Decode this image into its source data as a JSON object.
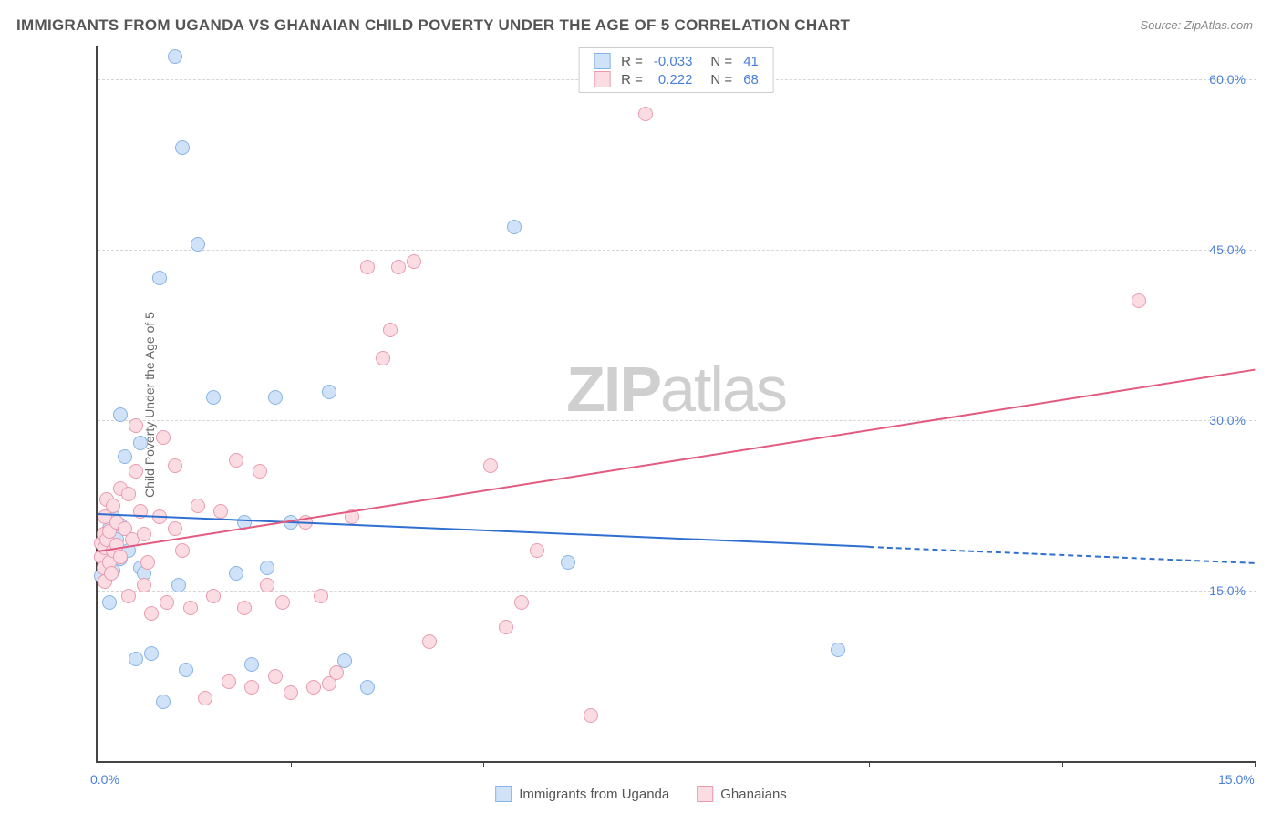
{
  "title": "IMMIGRANTS FROM UGANDA VS GHANAIAN CHILD POVERTY UNDER THE AGE OF 5 CORRELATION CHART",
  "source": "Source: ZipAtlas.com",
  "ylabel": "Child Poverty Under the Age of 5",
  "watermark_a": "ZIP",
  "watermark_b": "atlas",
  "chart": {
    "type": "scatter",
    "xlim": [
      0,
      15
    ],
    "ylim": [
      0,
      63
    ],
    "xticks": [
      0.0,
      15.0
    ],
    "xtick_labels": [
      "0.0%",
      "15.0%"
    ],
    "xtick_marks": [
      0,
      2.5,
      5.0,
      7.5,
      10.0,
      12.5,
      15.0
    ],
    "yticks": [
      15.0,
      30.0,
      45.0,
      60.0
    ],
    "ytick_labels": [
      "15.0%",
      "30.0%",
      "45.0%",
      "60.0%"
    ],
    "grid_color": "#d5d5d5",
    "axis_color": "#444444",
    "background_color": "#ffffff",
    "point_radius": 8,
    "title_color": "#555555",
    "title_fontsize": 17,
    "label_color": "#666666",
    "label_fontsize": 14,
    "tick_color": "#4a7fd8",
    "tick_fontsize": 14
  },
  "series": [
    {
      "name": "Immigrants from Uganda",
      "fill": "#cfe2f7",
      "stroke": "#89b4e6",
      "line_color": "#2f6fd0",
      "R_label": "R =",
      "R": "-0.033",
      "N_label": "N =",
      "N": "41",
      "trend": {
        "x1": 0,
        "y1": 21.8,
        "x2": 15,
        "y2": 17.5,
        "solid_until_x": 10.0
      },
      "points": [
        [
          0.05,
          16.3
        ],
        [
          0.1,
          17.5
        ],
        [
          0.1,
          18.2
        ],
        [
          0.1,
          19.0
        ],
        [
          0.1,
          19.8
        ],
        [
          0.15,
          14.0
        ],
        [
          0.15,
          20.5
        ],
        [
          0.2,
          16.8
        ],
        [
          0.2,
          21.5
        ],
        [
          0.25,
          18.0
        ],
        [
          0.25,
          19.5
        ],
        [
          0.3,
          17.8
        ],
        [
          0.3,
          20.8
        ],
        [
          0.3,
          30.5
        ],
        [
          0.35,
          26.8
        ],
        [
          0.4,
          18.5
        ],
        [
          0.5,
          9.0
        ],
        [
          0.55,
          17.0
        ],
        [
          0.55,
          28.0
        ],
        [
          0.6,
          16.5
        ],
        [
          0.7,
          9.5
        ],
        [
          0.8,
          42.5
        ],
        [
          0.85,
          5.2
        ],
        [
          1.0,
          62.0
        ],
        [
          1.05,
          15.5
        ],
        [
          1.1,
          54.0
        ],
        [
          1.15,
          8.0
        ],
        [
          1.3,
          45.5
        ],
        [
          1.5,
          32.0
        ],
        [
          1.8,
          16.5
        ],
        [
          1.9,
          21.0
        ],
        [
          2.0,
          8.5
        ],
        [
          2.2,
          17.0
        ],
        [
          2.3,
          32.0
        ],
        [
          2.5,
          21.0
        ],
        [
          3.0,
          32.5
        ],
        [
          3.2,
          8.8
        ],
        [
          3.5,
          6.5
        ],
        [
          5.4,
          47.0
        ],
        [
          6.1,
          17.5
        ],
        [
          9.6,
          9.8
        ]
      ]
    },
    {
      "name": "Ghanaians",
      "fill": "#fbdce3",
      "stroke": "#e99bb0",
      "line_color": "#e25a7e",
      "R_label": "R =",
      "R": "0.222",
      "N_label": "N =",
      "N": "68",
      "trend": {
        "x1": 0,
        "y1": 18.5,
        "x2": 15,
        "y2": 34.5,
        "solid_until_x": 15.0
      },
      "points": [
        [
          0.05,
          18.0
        ],
        [
          0.05,
          19.2
        ],
        [
          0.08,
          17.0
        ],
        [
          0.08,
          20.0
        ],
        [
          0.1,
          15.8
        ],
        [
          0.1,
          18.8
        ],
        [
          0.1,
          21.5
        ],
        [
          0.12,
          19.5
        ],
        [
          0.12,
          23.0
        ],
        [
          0.15,
          17.5
        ],
        [
          0.15,
          20.2
        ],
        [
          0.18,
          16.5
        ],
        [
          0.2,
          18.5
        ],
        [
          0.2,
          22.5
        ],
        [
          0.25,
          19.0
        ],
        [
          0.25,
          21.0
        ],
        [
          0.3,
          18.0
        ],
        [
          0.3,
          24.0
        ],
        [
          0.35,
          20.5
        ],
        [
          0.4,
          14.5
        ],
        [
          0.4,
          23.5
        ],
        [
          0.45,
          19.5
        ],
        [
          0.5,
          25.5
        ],
        [
          0.5,
          29.5
        ],
        [
          0.55,
          22.0
        ],
        [
          0.6,
          15.5
        ],
        [
          0.6,
          20.0
        ],
        [
          0.65,
          17.5
        ],
        [
          0.7,
          13.0
        ],
        [
          0.8,
          21.5
        ],
        [
          0.85,
          28.5
        ],
        [
          0.9,
          14.0
        ],
        [
          1.0,
          20.5
        ],
        [
          1.0,
          26.0
        ],
        [
          1.1,
          18.5
        ],
        [
          1.2,
          13.5
        ],
        [
          1.3,
          22.5
        ],
        [
          1.4,
          5.5
        ],
        [
          1.5,
          14.5
        ],
        [
          1.6,
          22.0
        ],
        [
          1.7,
          7.0
        ],
        [
          1.8,
          26.5
        ],
        [
          1.9,
          13.5
        ],
        [
          2.0,
          6.5
        ],
        [
          2.1,
          25.5
        ],
        [
          2.2,
          15.5
        ],
        [
          2.3,
          7.5
        ],
        [
          2.4,
          14.0
        ],
        [
          2.5,
          6.0
        ],
        [
          2.7,
          21.0
        ],
        [
          2.8,
          6.5
        ],
        [
          2.9,
          14.5
        ],
        [
          3.0,
          6.8
        ],
        [
          3.1,
          7.8
        ],
        [
          3.3,
          21.5
        ],
        [
          3.5,
          43.5
        ],
        [
          3.7,
          35.5
        ],
        [
          3.8,
          38.0
        ],
        [
          3.9,
          43.5
        ],
        [
          4.1,
          44.0
        ],
        [
          4.3,
          10.5
        ],
        [
          5.1,
          26.0
        ],
        [
          5.3,
          11.8
        ],
        [
          5.5,
          14.0
        ],
        [
          5.7,
          18.5
        ],
        [
          6.4,
          4.0
        ],
        [
          7.1,
          57.0
        ],
        [
          13.5,
          40.5
        ]
      ]
    }
  ],
  "legend": {
    "s1_label": "Immigrants from Uganda",
    "s2_label": "Ghanaians"
  }
}
